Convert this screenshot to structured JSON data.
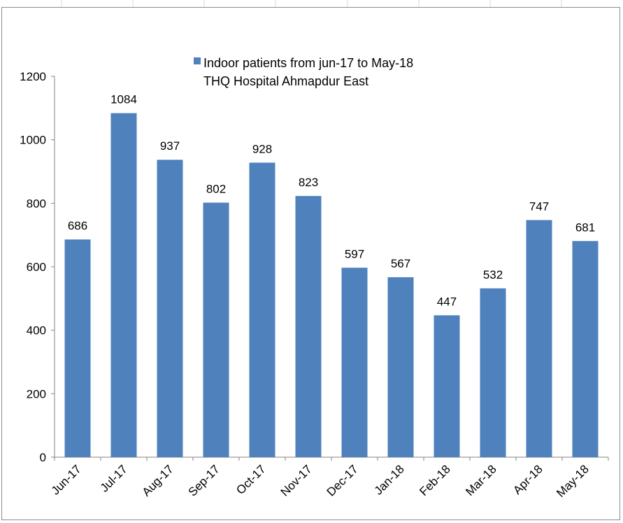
{
  "chart_data": {
    "type": "bar",
    "categories": [
      "Jun-17",
      "Jul-17",
      "Aug-17",
      "Sep-17",
      "Oct-17",
      "Nov-17",
      "Dec-17",
      "Jan-18",
      "Feb-18",
      "Mar-18",
      "Apr-18",
      "May-18"
    ],
    "series": [
      {
        "name": "Indoor patients from jun-17 to May-18 THQ Hospital Ahmapdur East",
        "values": [
          686,
          1084,
          937,
          802,
          928,
          823,
          597,
          567,
          447,
          532,
          747,
          681
        ],
        "color": "#4F81BD"
      }
    ],
    "legend": {
      "line1": "Indoor patients from jun-17 to May-18",
      "line2": "THQ Hospital Ahmapdur East",
      "position": "top-center"
    },
    "ylim": [
      0,
      1200
    ],
    "yticks": [
      0,
      200,
      400,
      600,
      800,
      1000,
      1200
    ],
    "grid": false,
    "xlabel": "",
    "ylabel": "",
    "title": ""
  }
}
